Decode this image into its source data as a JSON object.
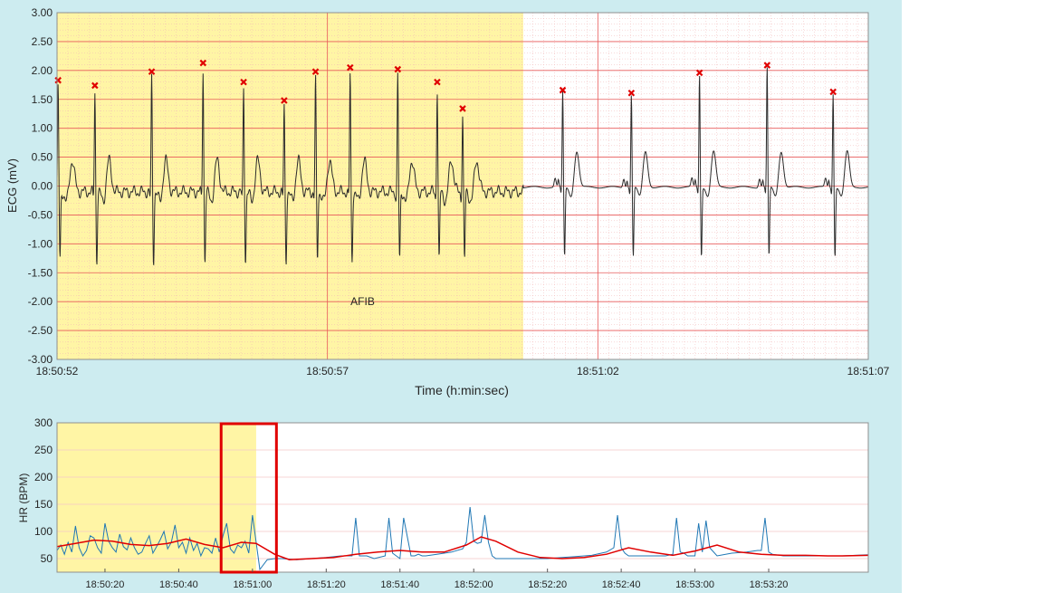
{
  "colors": {
    "figure_bg": "#cdecf0",
    "plot_bg": "#ffffff",
    "afib_region": "#fff5a5",
    "grid_major": "#e85a5a",
    "grid_minor": "#f2b6b6",
    "ecg_trace": "#2b2b2b",
    "r_peak_marker": "#e00000",
    "hr_trace": "#1f77b4",
    "hr_trend": "#e00000",
    "hr_grid": "#f4c9c9",
    "selection_box": "#e00000"
  },
  "ecg_panel": {
    "ylabel": "ECG (mV)",
    "xlabel": "Time (h:min:sec)",
    "annotation": "AFIB"
  },
  "hr_panel": {
    "ylabel": "HR (BPM)"
  },
  "chart_data": [
    {
      "type": "line",
      "name": "ecg",
      "ylabel": "ECG (mV)",
      "xlabel": "Time (h:min:sec)",
      "ylim": [
        -3.0,
        3.0
      ],
      "xlim_seconds": [
        0,
        15
      ],
      "y_ticks": [
        "3.00",
        "2.50",
        "2.00",
        "1.50",
        "1.00",
        "0.50",
        "0.00",
        "-0.50",
        "-1.00",
        "-1.50",
        "-2.00",
        "-2.50",
        "-3.00"
      ],
      "x_ticks": [
        {
          "t": 0,
          "label": "18:50:52"
        },
        {
          "t": 5,
          "label": "18:50:57"
        },
        {
          "t": 10,
          "label": "18:51:02"
        },
        {
          "t": 15,
          "label": "18:51:07"
        }
      ],
      "afib_region_seconds": [
        0,
        8.62
      ],
      "annotation": {
        "text": "AFIB",
        "t": 5.65,
        "mv": -2.0
      },
      "r_peaks": [
        {
          "t": 0.02,
          "mv": 1.83
        },
        {
          "t": 0.7,
          "mv": 1.74
        },
        {
          "t": 1.75,
          "mv": 1.98
        },
        {
          "t": 2.7,
          "mv": 2.13
        },
        {
          "t": 3.45,
          "mv": 1.8
        },
        {
          "t": 4.2,
          "mv": 1.48
        },
        {
          "t": 4.78,
          "mv": 1.98
        },
        {
          "t": 5.42,
          "mv": 2.05
        },
        {
          "t": 6.3,
          "mv": 2.02
        },
        {
          "t": 7.03,
          "mv": 1.8
        },
        {
          "t": 7.5,
          "mv": 1.34
        },
        {
          "t": 9.35,
          "mv": 1.66
        },
        {
          "t": 10.62,
          "mv": 1.61
        },
        {
          "t": 11.88,
          "mv": 1.96
        },
        {
          "t": 13.13,
          "mv": 2.09
        },
        {
          "t": 14.35,
          "mv": 1.63
        }
      ]
    },
    {
      "type": "line",
      "name": "heart-rate",
      "ylabel": "HR (BPM)",
      "ylim": [
        25,
        300
      ],
      "y_ticks": [
        300,
        250,
        200,
        150,
        100,
        50
      ],
      "xlim_seconds": [
        1207,
        1427
      ],
      "x_ticks": [
        {
          "t": 1220,
          "label": "18:50:20"
        },
        {
          "t": 1240,
          "label": "18:50:40"
        },
        {
          "t": 1260,
          "label": "18:51:00"
        },
        {
          "t": 1280,
          "label": "18:51:20"
        },
        {
          "t": 1300,
          "label": "18:51:40"
        },
        {
          "t": 1320,
          "label": "18:52:00"
        },
        {
          "t": 1340,
          "label": "18:52:20"
        },
        {
          "t": 1360,
          "label": "18:52:40"
        },
        {
          "t": 1380,
          "label": "18:53:00"
        },
        {
          "t": 1400,
          "label": "18:53:20"
        }
      ],
      "afib_region_seconds": [
        1207,
        1261
      ],
      "selection_window_seconds": [
        1251.5,
        1266.5
      ],
      "series": [
        {
          "role": "instantaneous",
          "x": [
            1207,
            1208,
            1209,
            1210,
            1211,
            1212,
            1213,
            1214,
            1215,
            1216,
            1217,
            1218,
            1219,
            1220,
            1221,
            1222,
            1223,
            1224,
            1225,
            1226,
            1227,
            1228,
            1229,
            1230,
            1231,
            1232,
            1233,
            1234,
            1235,
            1236,
            1237,
            1238,
            1239,
            1240,
            1241,
            1242,
            1243,
            1244,
            1245,
            1246,
            1247,
            1248,
            1249,
            1250,
            1251,
            1252,
            1253,
            1254,
            1255,
            1256,
            1257,
            1258,
            1259,
            1260,
            1262,
            1264,
            1266,
            1268,
            1272,
            1276,
            1280,
            1284,
            1287,
            1288,
            1289,
            1290,
            1291,
            1293,
            1296,
            1297,
            1298,
            1299,
            1300,
            1301,
            1303,
            1304,
            1305,
            1306,
            1307,
            1310,
            1314,
            1317,
            1318,
            1319,
            1320,
            1321,
            1322,
            1323,
            1324,
            1325,
            1326,
            1328,
            1332,
            1336,
            1340,
            1344,
            1348,
            1352,
            1356,
            1358,
            1359,
            1360,
            1361,
            1362,
            1364,
            1368,
            1372,
            1374,
            1375,
            1376,
            1377,
            1378,
            1379,
            1380,
            1381,
            1382,
            1383,
            1384,
            1386,
            1390,
            1394,
            1397,
            1398,
            1399,
            1400,
            1401,
            1404,
            1408,
            1412,
            1416,
            1420,
            1427
          ],
          "y": [
            65,
            75,
            58,
            80,
            62,
            110,
            70,
            55,
            65,
            92,
            88,
            70,
            60,
            115,
            82,
            70,
            62,
            95,
            72,
            66,
            88,
            70,
            58,
            62,
            78,
            92,
            60,
            72,
            85,
            100,
            68,
            80,
            112,
            70,
            80,
            60,
            88,
            65,
            78,
            55,
            70,
            68,
            60,
            88,
            62,
            92,
            115,
            68,
            60,
            75,
            70,
            82,
            60,
            130,
            30,
            48,
            50,
            50,
            48,
            50,
            52,
            55,
            55,
            125,
            55,
            55,
            55,
            50,
            55,
            125,
            60,
            55,
            50,
            125,
            55,
            55,
            58,
            55,
            55,
            58,
            62,
            68,
            80,
            145,
            82,
            78,
            80,
            130,
            80,
            55,
            50,
            50,
            50,
            50,
            50,
            52,
            54,
            56,
            62,
            70,
            130,
            70,
            60,
            55,
            55,
            55,
            55,
            58,
            125,
            62,
            60,
            55,
            55,
            55,
            115,
            62,
            120,
            70,
            55,
            60,
            62,
            65,
            65,
            125,
            62,
            58,
            55,
            55,
            55,
            55,
            55,
            57
          ]
        },
        {
          "role": "trend",
          "x": [
            1207,
            1212,
            1217,
            1222,
            1227,
            1232,
            1237,
            1242,
            1247,
            1252,
            1257,
            1261,
            1266,
            1270,
            1276,
            1282,
            1288,
            1294,
            1300,
            1306,
            1312,
            1318,
            1322,
            1326,
            1332,
            1338,
            1344,
            1350,
            1356,
            1362,
            1368,
            1374,
            1380,
            1386,
            1392,
            1398,
            1404,
            1410,
            1416,
            1420,
            1427
          ],
          "y": [
            72,
            78,
            84,
            82,
            76,
            74,
            78,
            86,
            76,
            70,
            80,
            78,
            58,
            48,
            50,
            52,
            58,
            62,
            65,
            62,
            62,
            75,
            90,
            82,
            62,
            52,
            50,
            52,
            58,
            70,
            62,
            56,
            64,
            75,
            62,
            58,
            56,
            56,
            55,
            55,
            56
          ]
        }
      ]
    }
  ]
}
